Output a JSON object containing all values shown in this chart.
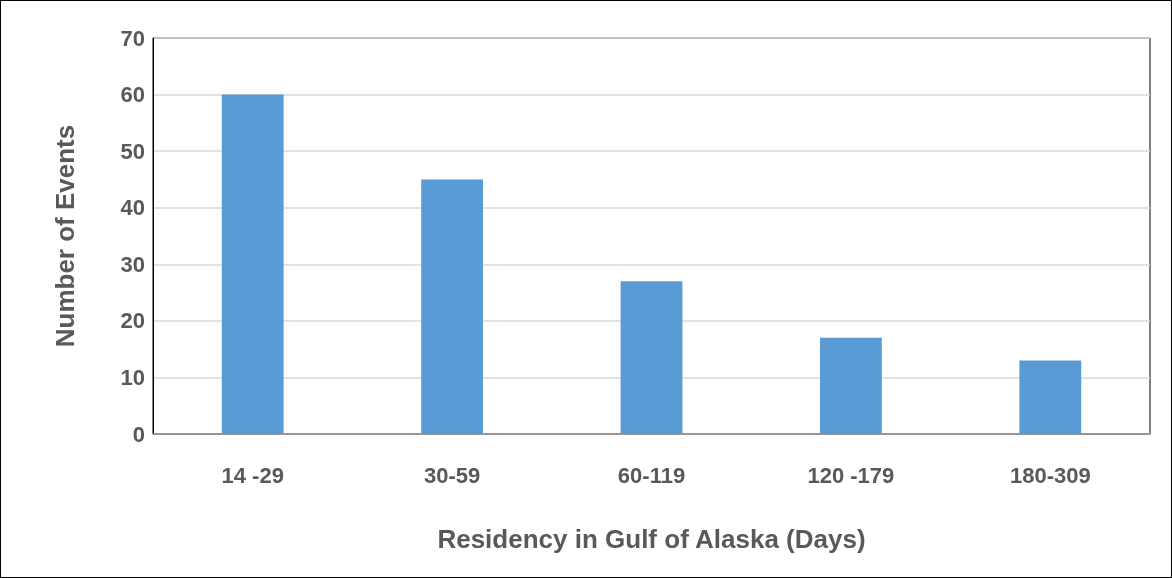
{
  "chart_data": {
    "type": "bar",
    "xlabel": "Residency in Gulf of Alaska (Days)",
    "ylabel": "Number of Events",
    "categories": [
      "14 -29",
      "30-59",
      "60-119",
      "120 -179",
      "180-309"
    ],
    "values": [
      60,
      45,
      27,
      17,
      13
    ],
    "color": "#5b9bd5",
    "ylim": [
      0,
      70
    ],
    "yticks": [
      0,
      10,
      20,
      30,
      40,
      50,
      60,
      70
    ],
    "grid": "y"
  }
}
